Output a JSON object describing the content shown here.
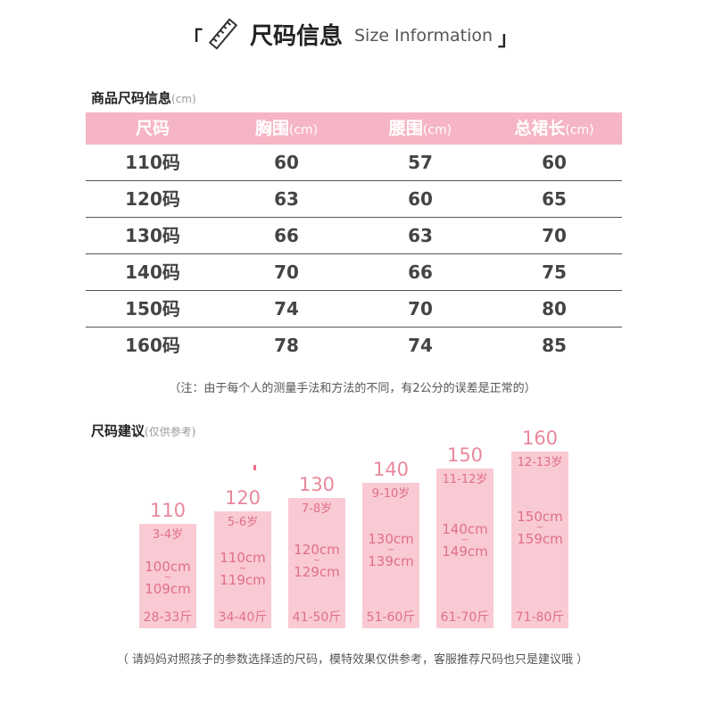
{
  "header": {
    "bracket_left": "「",
    "title_cn": "尺码信息",
    "title_en": "Size Information",
    "bracket_right": "」",
    "icon": "ruler-pencil-icon"
  },
  "table_section": {
    "title": "商品尺码信息",
    "unit": "(cm)"
  },
  "table": {
    "headers": [
      {
        "label": "尺码",
        "unit": ""
      },
      {
        "label": "胸围",
        "unit": "(cm)"
      },
      {
        "label": "腰围",
        "unit": "(cm)"
      },
      {
        "label": "总裙长",
        "unit": "(cm)"
      }
    ],
    "rows": [
      [
        "110码",
        "60",
        "57",
        "60"
      ],
      [
        "120码",
        "63",
        "60",
        "65"
      ],
      [
        "130码",
        "66",
        "63",
        "70"
      ],
      [
        "140码",
        "70",
        "66",
        "75"
      ],
      [
        "150码",
        "74",
        "70",
        "80"
      ],
      [
        "160码",
        "78",
        "74",
        "85"
      ]
    ]
  },
  "note_measure": "（注：由于每个人的测量手法和方法的不同，有2公分的误差是正常的）",
  "suggest_section": {
    "title": "尺码建议",
    "sub": "(仅供参考)"
  },
  "suggestions": [
    {
      "size": "110",
      "age": "3-4岁",
      "height_from": "100cm",
      "tilde": "~",
      "height_to": "109cm",
      "weight": "28-33斤"
    },
    {
      "size": "120",
      "age": "5-6岁",
      "height_from": "110cm",
      "tilde": "~",
      "height_to": "119cm",
      "weight": "34-40斤"
    },
    {
      "size": "130",
      "age": "7-8岁",
      "height_from": "120cm",
      "tilde": "~",
      "height_to": "129cm",
      "weight": "41-50斤"
    },
    {
      "size": "140",
      "age": "9-10岁",
      "height_from": "130cm",
      "tilde": "~",
      "height_to": "139cm",
      "weight": "51-60斤"
    },
    {
      "size": "150",
      "age": "11-12岁",
      "height_from": "140cm",
      "tilde": "~",
      "height_to": "149cm",
      "weight": "61-70斤"
    },
    {
      "size": "160",
      "age": "12-13岁",
      "height_from": "150cm",
      "tilde": "~",
      "height_to": "159cm",
      "weight": "71-80斤"
    }
  ],
  "note_suggest": "（ 请妈妈对照孩子的参数选择适的尺码，模特效果仅供参考，客服推荐尺码也只是建议哦 ）",
  "colors": {
    "table_header": "#f6b5c4",
    "bar": "#f9cad3",
    "bar_text": "#e06f8a",
    "size_label": "#e8889c"
  }
}
